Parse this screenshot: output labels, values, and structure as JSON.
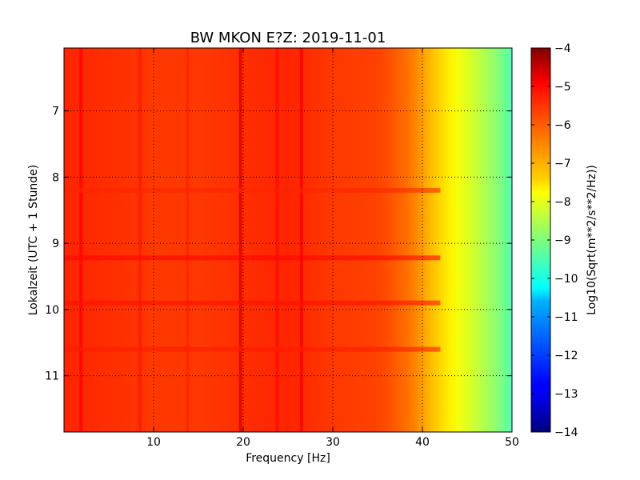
{
  "chart_data": {
    "type": "heatmap",
    "title": "BW MKON E?Z: 2019-11-01",
    "xlabel": "Frequency [Hz]",
    "ylabel": "Lokalzeit (UTC + 1 Stunde)",
    "xlim": [
      0,
      50
    ],
    "ylim": [
      11.85,
      6.05
    ],
    "y_axis_inverted": true,
    "grid": true,
    "x_ticks": [
      10,
      20,
      30,
      40,
      50
    ],
    "x_tick_labels": [
      "10",
      "20",
      "30",
      "40",
      "50"
    ],
    "y_ticks": [
      7,
      8,
      9,
      10,
      11
    ],
    "y_tick_labels": [
      "7",
      "8",
      "9",
      "10",
      "11"
    ],
    "colormap": "jet",
    "colorbar": {
      "label": "Log10(Sqrt(m**2/s**2/Hz))",
      "range": [
        -14,
        -4
      ],
      "ticks": [
        -4,
        -5,
        -6,
        -7,
        -8,
        -9,
        -10,
        -11,
        -12,
        -13,
        -14
      ],
      "tick_labels": [
        "−4",
        "−5",
        "−6",
        "−7",
        "−8",
        "−9",
        "−10",
        "−11",
        "−12",
        "−13",
        "−14"
      ]
    },
    "frequency_profile": {
      "frequency_hz": [
        0,
        5,
        10,
        15,
        20,
        25,
        30,
        35,
        36,
        37,
        38,
        39,
        40,
        41,
        42,
        43,
        44,
        45,
        46,
        47,
        48,
        49,
        50
      ],
      "log10_amplitude": [
        -5.6,
        -5.7,
        -5.8,
        -5.8,
        -5.7,
        -5.6,
        -5.8,
        -5.9,
        -6.0,
        -6.15,
        -6.3,
        -6.5,
        -6.8,
        -7.1,
        -7.35,
        -7.6,
        -7.85,
        -8.05,
        -8.3,
        -8.55,
        -8.8,
        -9.1,
        -9.5
      ]
    },
    "vertical_lines": [
      {
        "frequency_hz": 1.9,
        "log10_amplitude": -5.3
      },
      {
        "frequency_hz": 8.5,
        "log10_amplitude": -5.5
      },
      {
        "frequency_hz": 13.8,
        "log10_amplitude": -5.6
      },
      {
        "frequency_hz": 19.7,
        "log10_amplitude": -5.0
      },
      {
        "frequency_hz": 23.8,
        "log10_amplitude": -5.4
      },
      {
        "frequency_hz": 26.5,
        "log10_amplitude": -5.2
      }
    ],
    "horizontal_bands": [
      {
        "time_h": 8.2,
        "log10_amplitude": -5.6
      },
      {
        "time_h": 9.22,
        "log10_amplitude": -5.3
      },
      {
        "time_h": 9.9,
        "log10_amplitude": -5.4
      },
      {
        "time_h": 10.6,
        "log10_amplitude": -5.5
      }
    ]
  }
}
